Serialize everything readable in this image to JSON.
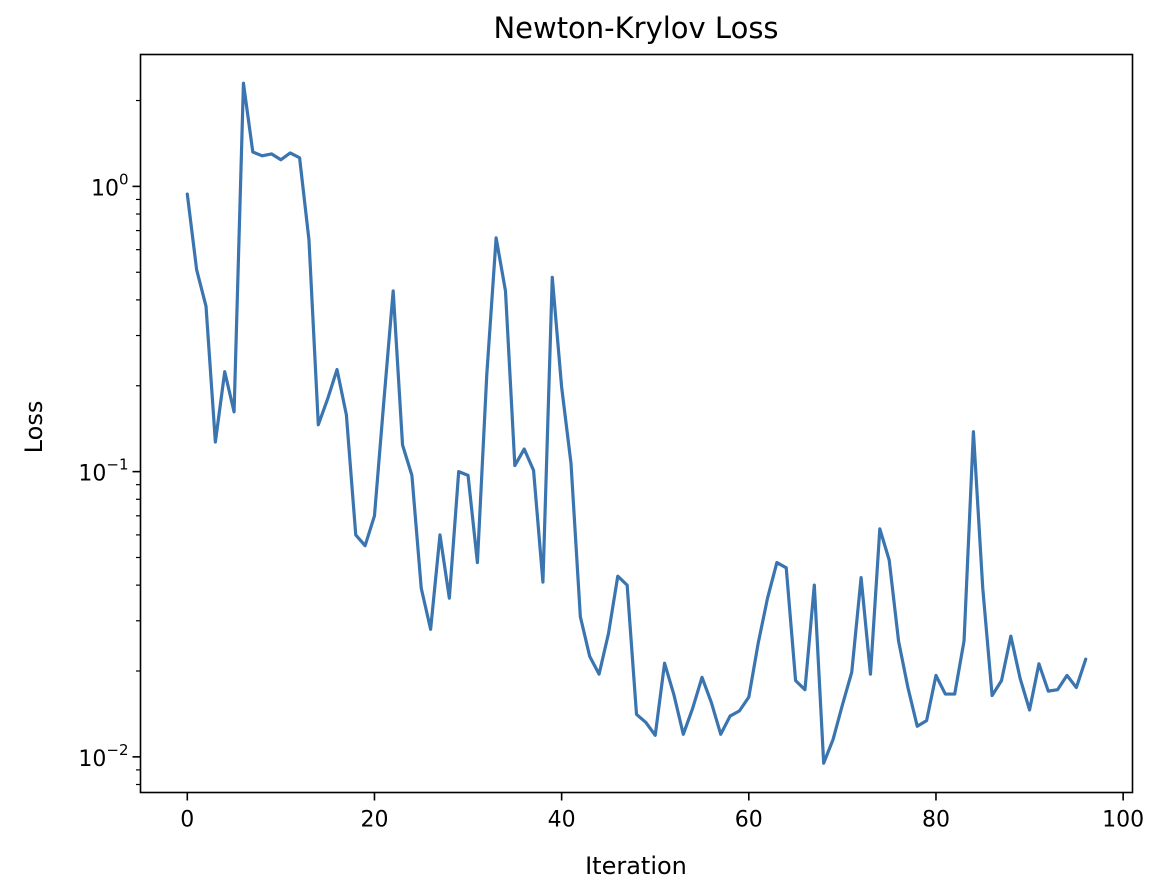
{
  "chart_data": {
    "type": "line",
    "title": "Newton-Krylov Loss",
    "xlabel": "Iteration",
    "ylabel": "Loss",
    "yscale": "log",
    "xlim": [
      -5,
      101
    ],
    "ylim": [
      0.0075,
      2.9
    ],
    "grid": false,
    "line_color": "#3a75b0",
    "x_ticks": [
      0,
      20,
      40,
      60,
      80,
      100
    ],
    "x_tick_labels": [
      "0",
      "20",
      "40",
      "60",
      "80",
      "100"
    ],
    "y_major_ticks": [
      {
        "value": 0.01,
        "base": "10",
        "exp": "−2"
      },
      {
        "value": 0.1,
        "base": "10",
        "exp": "−1"
      },
      {
        "value": 1,
        "base": "10",
        "exp": "0"
      }
    ],
    "series": [
      {
        "x": [
          0,
          1,
          2,
          3,
          4,
          5,
          6,
          7,
          8,
          9,
          10,
          11,
          12,
          13,
          14,
          15,
          16,
          17,
          18,
          19,
          20,
          21,
          22,
          23,
          24,
          25,
          26,
          27,
          28,
          29,
          30,
          31,
          32,
          33,
          34,
          35,
          36,
          37,
          38,
          39,
          40,
          41,
          42,
          43,
          44,
          45,
          46,
          47,
          48,
          49,
          50,
          51,
          52,
          53,
          54,
          55,
          56,
          57,
          58,
          59,
          60,
          61,
          62,
          63,
          64,
          65,
          66,
          67,
          68,
          69,
          70,
          71,
          72,
          73,
          74,
          75,
          76,
          77,
          78,
          79,
          80,
          81,
          82,
          83,
          84,
          85,
          86,
          87,
          88,
          89,
          90,
          91,
          92,
          93,
          94,
          95,
          96
        ],
        "values": [
          0.94,
          0.51,
          0.38,
          0.127,
          0.224,
          0.162,
          2.3,
          1.32,
          1.28,
          1.3,
          1.24,
          1.31,
          1.26,
          0.65,
          0.146,
          0.18,
          0.228,
          0.158,
          0.06,
          0.055,
          0.07,
          0.176,
          0.43,
          0.124,
          0.097,
          0.039,
          0.028,
          0.06,
          0.036,
          0.1,
          0.097,
          0.048,
          0.218,
          0.66,
          0.43,
          0.105,
          0.12,
          0.101,
          0.041,
          0.48,
          0.198,
          0.107,
          0.031,
          0.0225,
          0.0195,
          0.027,
          0.043,
          0.04,
          0.0141,
          0.0132,
          0.0119,
          0.0213,
          0.0165,
          0.012,
          0.0148,
          0.019,
          0.0155,
          0.012,
          0.0139,
          0.0145,
          0.0162,
          0.025,
          0.036,
          0.048,
          0.046,
          0.0185,
          0.0172,
          0.04,
          0.0095,
          0.0115,
          0.0152,
          0.0198,
          0.0425,
          0.0195,
          0.063,
          0.049,
          0.0255,
          0.0175,
          0.0128,
          0.0134,
          0.0193,
          0.0166,
          0.0166,
          0.0255,
          0.138,
          0.039,
          0.0164,
          0.0185,
          0.0265,
          0.0188,
          0.0146,
          0.0212,
          0.017,
          0.0172,
          0.0193,
          0.0175,
          0.022
        ]
      }
    ]
  }
}
